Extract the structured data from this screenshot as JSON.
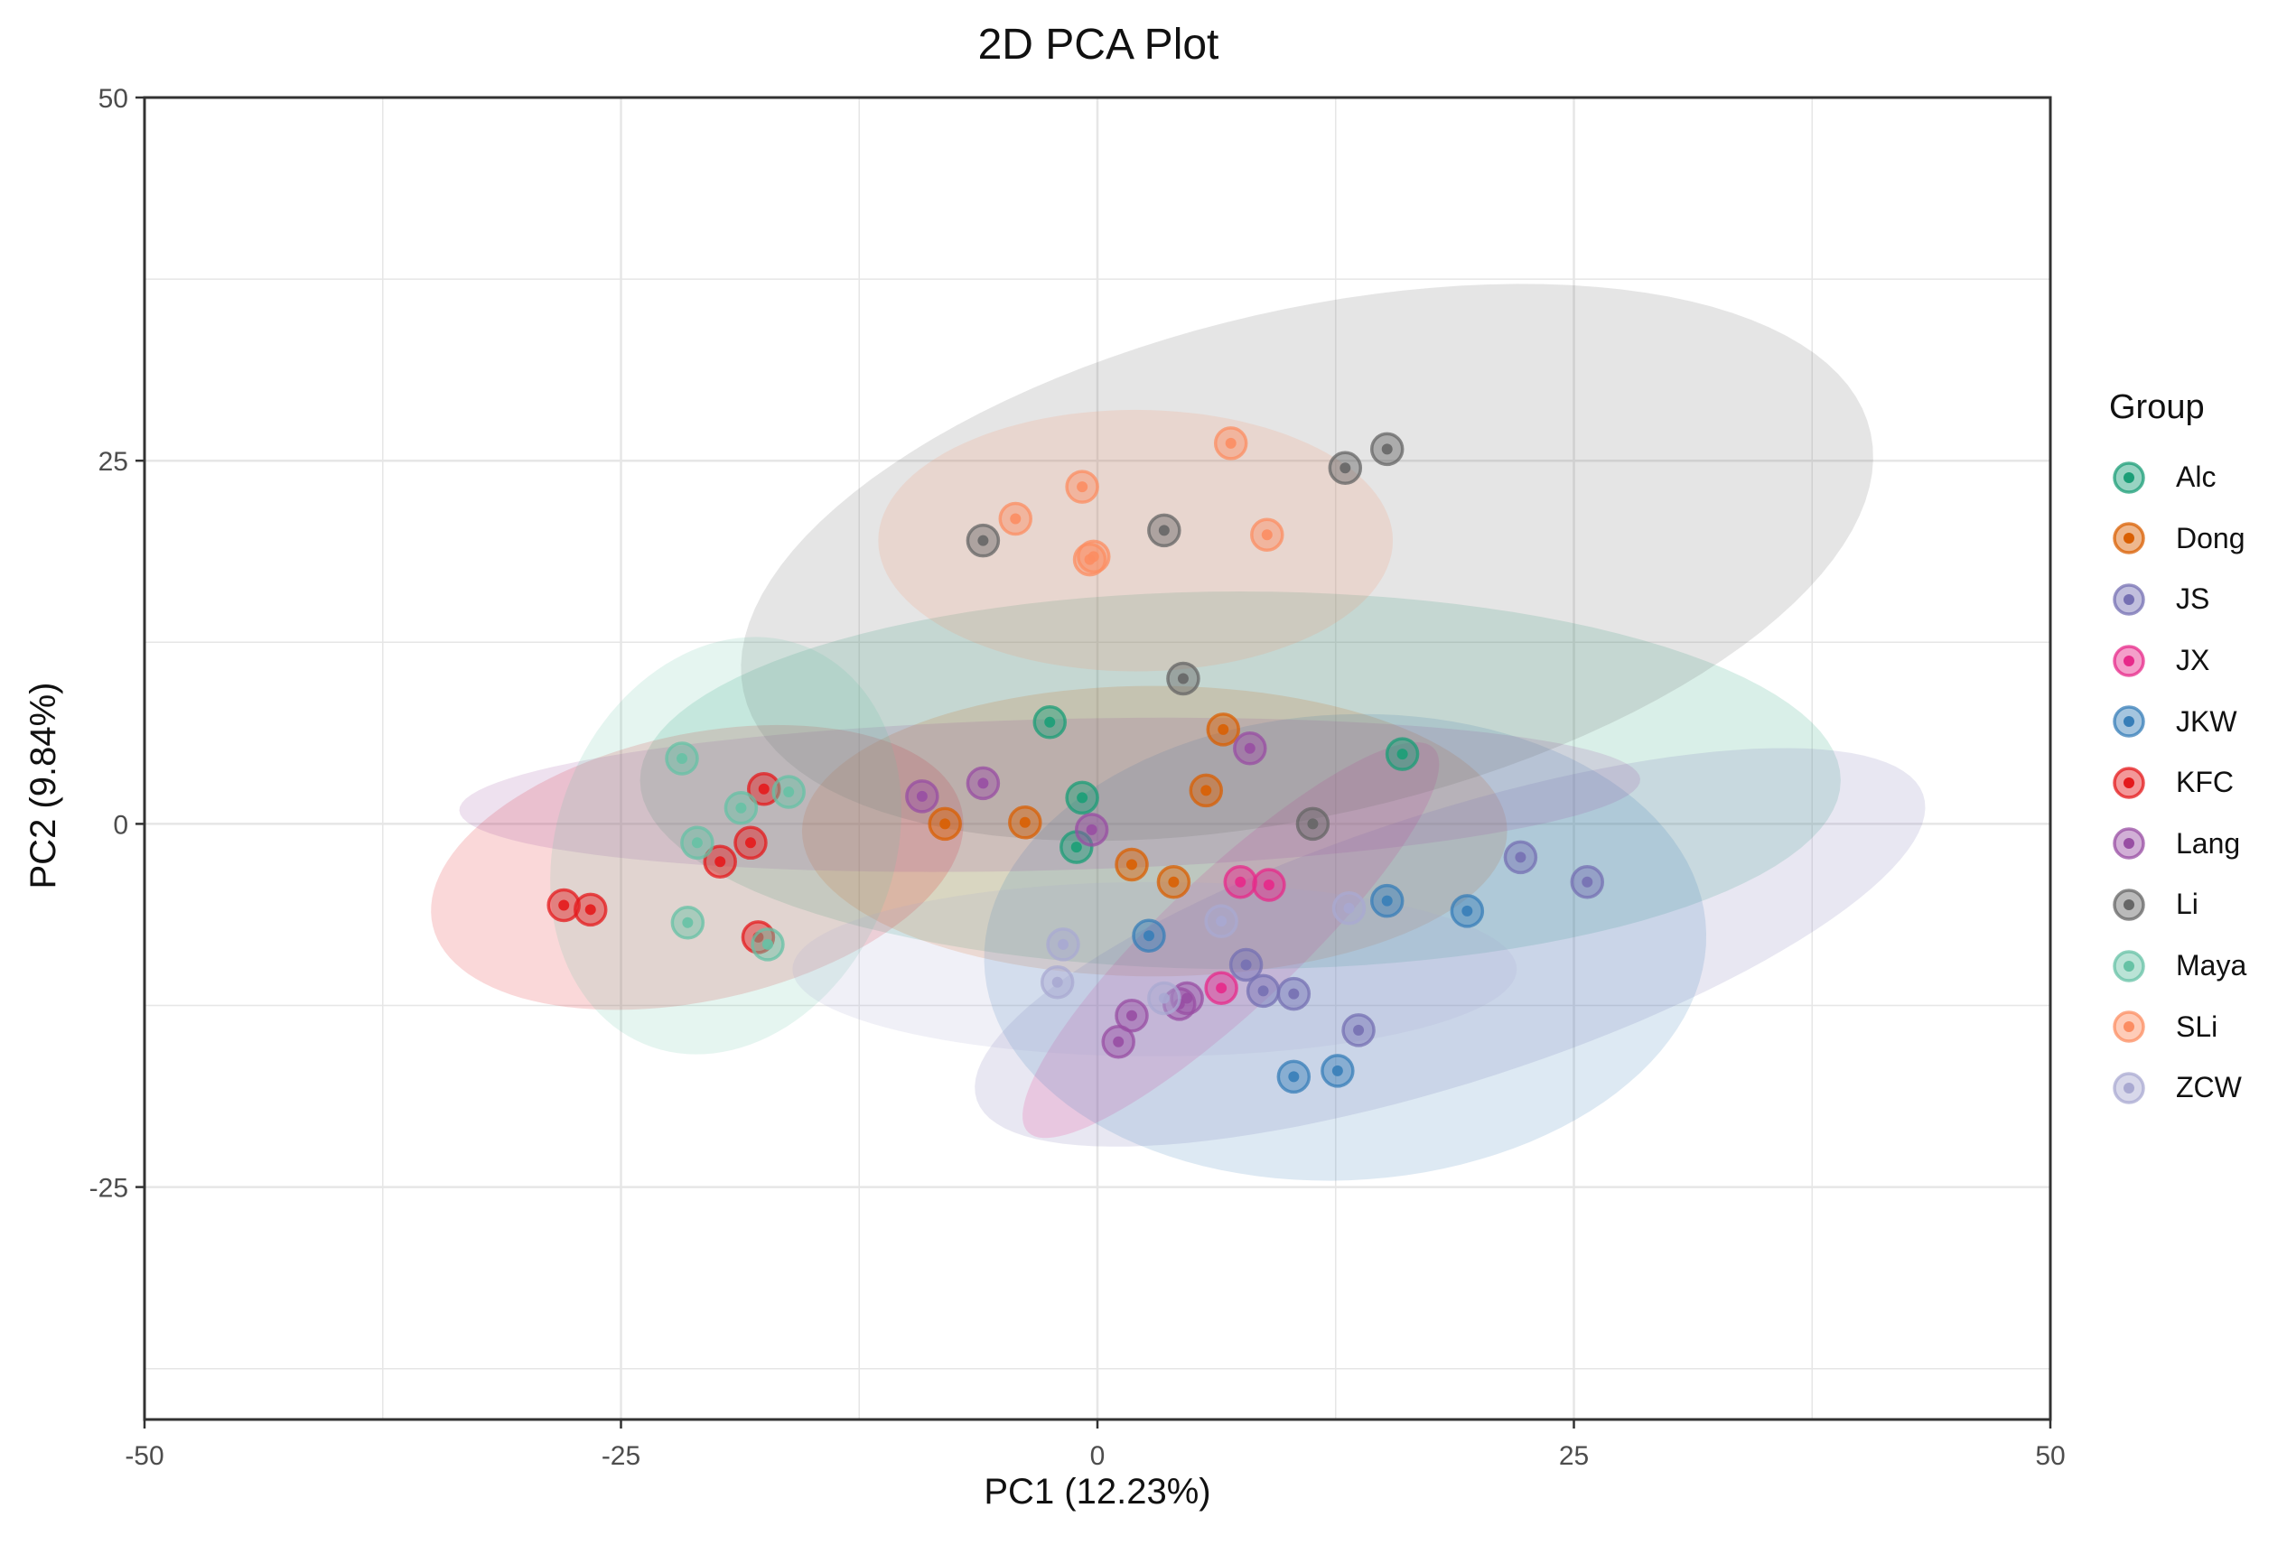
{
  "chart_data": {
    "type": "scatter",
    "title": "2D PCA Plot",
    "xlabel": "PC1 (12.23%)",
    "ylabel": "PC2 (9.84%)",
    "xlim": [
      -50,
      50
    ],
    "ylim": [
      -41,
      50
    ],
    "x_ticks": [
      -50,
      -25,
      0,
      25,
      50
    ],
    "y_ticks": [
      50,
      25,
      0,
      -25
    ],
    "grid": true,
    "legend_title": "Group",
    "legend_position": "right",
    "series": [
      {
        "name": "Alc",
        "color": "#1b9e77",
        "points": [
          [
            -2.5,
            7
          ],
          [
            -0.8,
            1.8
          ],
          [
            -1.1,
            -1.6
          ],
          [
            16,
            4.8
          ]
        ],
        "ellipse": {
          "cx": 7.5,
          "cy": 3,
          "rx": 31.5,
          "ry": 13,
          "angle": 0
        }
      },
      {
        "name": "Dong",
        "color": "#d95f02",
        "points": [
          [
            -8,
            0
          ],
          [
            -3.8,
            0.1
          ],
          [
            1.8,
            -2.8
          ],
          [
            4,
            -4
          ],
          [
            5.7,
            2.3
          ],
          [
            6.6,
            6.5
          ]
        ],
        "ellipse": {
          "cx": 3,
          "cy": -0.5,
          "rx": 18.5,
          "ry": 10,
          "angle": 0
        }
      },
      {
        "name": "JS",
        "color": "#7570b3",
        "points": [
          [
            7.8,
            -9.7
          ],
          [
            8.7,
            -11.5
          ],
          [
            10.3,
            -11.7
          ],
          [
            13.7,
            -14.2
          ],
          [
            22.2,
            -2.3
          ],
          [
            25.7,
            -4
          ]
        ],
        "ellipse": {
          "cx": 18.5,
          "cy": -8.5,
          "rx": 27,
          "ry": 9,
          "angle": 24
        }
      },
      {
        "name": "JX",
        "color": "#e7298a",
        "points": [
          [
            6.5,
            -11.3
          ],
          [
            7.5,
            -4
          ],
          [
            9,
            -4.2
          ]
        ],
        "ellipse": {
          "cx": 7,
          "cy": -8,
          "rx": 17,
          "ry": 4,
          "angle": 52
        }
      },
      {
        "name": "JKW",
        "color": "#377eb8",
        "points": [
          [
            2.7,
            -7.7
          ],
          [
            10.3,
            -17.4
          ],
          [
            12.6,
            -17
          ],
          [
            15.2,
            -5.3
          ],
          [
            19.4,
            -6
          ]
        ],
        "ellipse": {
          "cx": 13,
          "cy": -8.5,
          "rx": 19,
          "ry": 16,
          "angle": 8
        }
      },
      {
        "name": "KFC",
        "color": "#e41a1c",
        "points": [
          [
            -28,
            -5.6
          ],
          [
            -26.6,
            -5.9
          ],
          [
            -19.8,
            -2.6
          ],
          [
            -18.2,
            -1.3
          ],
          [
            -17.5,
            2.4
          ],
          [
            -17.8,
            -7.8
          ]
        ],
        "ellipse": {
          "cx": -21,
          "cy": -3,
          "rx": 14.5,
          "ry": 9,
          "angle": 20
        }
      },
      {
        "name": "Lang",
        "color": "#984ea3",
        "points": [
          [
            -9.2,
            1.9
          ],
          [
            -6,
            2.8
          ],
          [
            -0.3,
            -0.4
          ],
          [
            8,
            5.2
          ],
          [
            1.1,
            -15
          ],
          [
            1.8,
            -13.2
          ],
          [
            4.3,
            -12.4
          ],
          [
            4.7,
            -12
          ]
        ],
        "ellipse": {
          "cx": -2.5,
          "cy": 2,
          "rx": 31,
          "ry": 5.2,
          "angle": 2
        }
      },
      {
        "name": "Li",
        "color": "#666666",
        "points": [
          [
            -6,
            19.5
          ],
          [
            3.5,
            20.2
          ],
          [
            4.5,
            10
          ],
          [
            11.3,
            0
          ],
          [
            13,
            24.5
          ],
          [
            15.2,
            25.8
          ]
        ],
        "ellipse": {
          "cx": 11,
          "cy": 18,
          "rx": 31,
          "ry": 17,
          "angle": 20
        }
      },
      {
        "name": "Maya",
        "color": "#66c2a5",
        "points": [
          [
            -21.8,
            4.5
          ],
          [
            -21,
            -1.3
          ],
          [
            -18.7,
            1.1
          ],
          [
            -16.2,
            2.2
          ],
          [
            -21.5,
            -6.8
          ],
          [
            -17.3,
            -8.3
          ]
        ],
        "ellipse": {
          "cx": -19.5,
          "cy": -1.5,
          "rx": 14.5,
          "ry": 9,
          "angle": 80
        }
      },
      {
        "name": "SLi",
        "color": "#fc8d62",
        "points": [
          [
            -4.3,
            21
          ],
          [
            -0.8,
            23.2
          ],
          [
            -0.4,
            18.2
          ],
          [
            -0.2,
            18.4
          ],
          [
            7,
            26.2
          ],
          [
            8.9,
            19.9
          ]
        ],
        "ellipse": {
          "cx": 2,
          "cy": 19.5,
          "rx": 13.5,
          "ry": 9,
          "angle": 0
        }
      },
      {
        "name": "ZCW",
        "color": "#a9a9d1",
        "points": [
          [
            -1.8,
            -8.3
          ],
          [
            -2.1,
            -10.9
          ],
          [
            3.5,
            -12
          ],
          [
            6.5,
            -6.7
          ],
          [
            13.2,
            -5.8
          ]
        ],
        "ellipse": {
          "cx": 3,
          "cy": -10,
          "rx": 19,
          "ry": 6,
          "angle": 0
        }
      }
    ]
  }
}
